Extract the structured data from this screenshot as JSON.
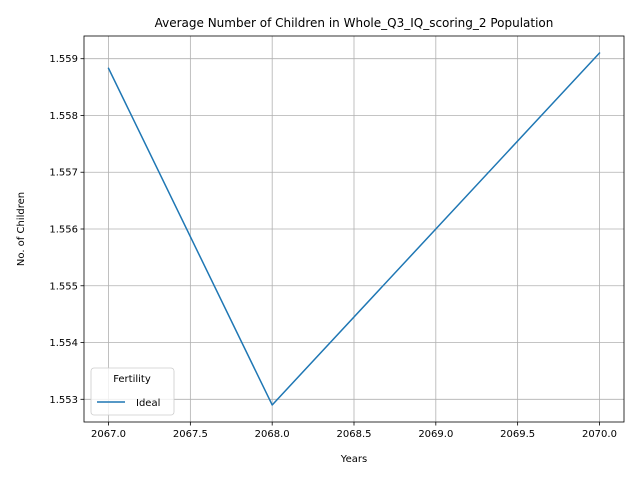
{
  "chart_data": {
    "type": "line",
    "title": "Average Number of Children in Whole_Q3_IQ_scoring_2 Population",
    "xlabel": "Years",
    "ylabel": "No. of Children",
    "xlim": [
      2066.85,
      2070.15
    ],
    "ylim": [
      1552.6,
      1559.4
    ],
    "y_scale_note": "",
    "xticks": [
      2067.0,
      2067.5,
      2068.0,
      2068.5,
      2069.0,
      2069.5,
      2070.0
    ],
    "xtick_labels": [
      "2067.0",
      "2067.5",
      "2068.0",
      "2068.5",
      "2069.0",
      "2069.5",
      "2070.0"
    ],
    "yticks": [
      1553,
      1554,
      1555,
      1556,
      1557,
      1558,
      1559
    ],
    "ytick_labels": [
      "1.553",
      "1.554",
      "1.555",
      "1.556",
      "1.557",
      "1.558",
      "1.559"
    ],
    "grid": true,
    "legend": {
      "title": "Fertility",
      "placement": "lower-left"
    },
    "x": [
      2067,
      2068,
      2069,
      2070
    ],
    "series": [
      {
        "name": "Ideal",
        "color": "#1f77b4",
        "values": [
          1558.83,
          1552.9,
          1556.0,
          1559.1
        ]
      }
    ]
  }
}
